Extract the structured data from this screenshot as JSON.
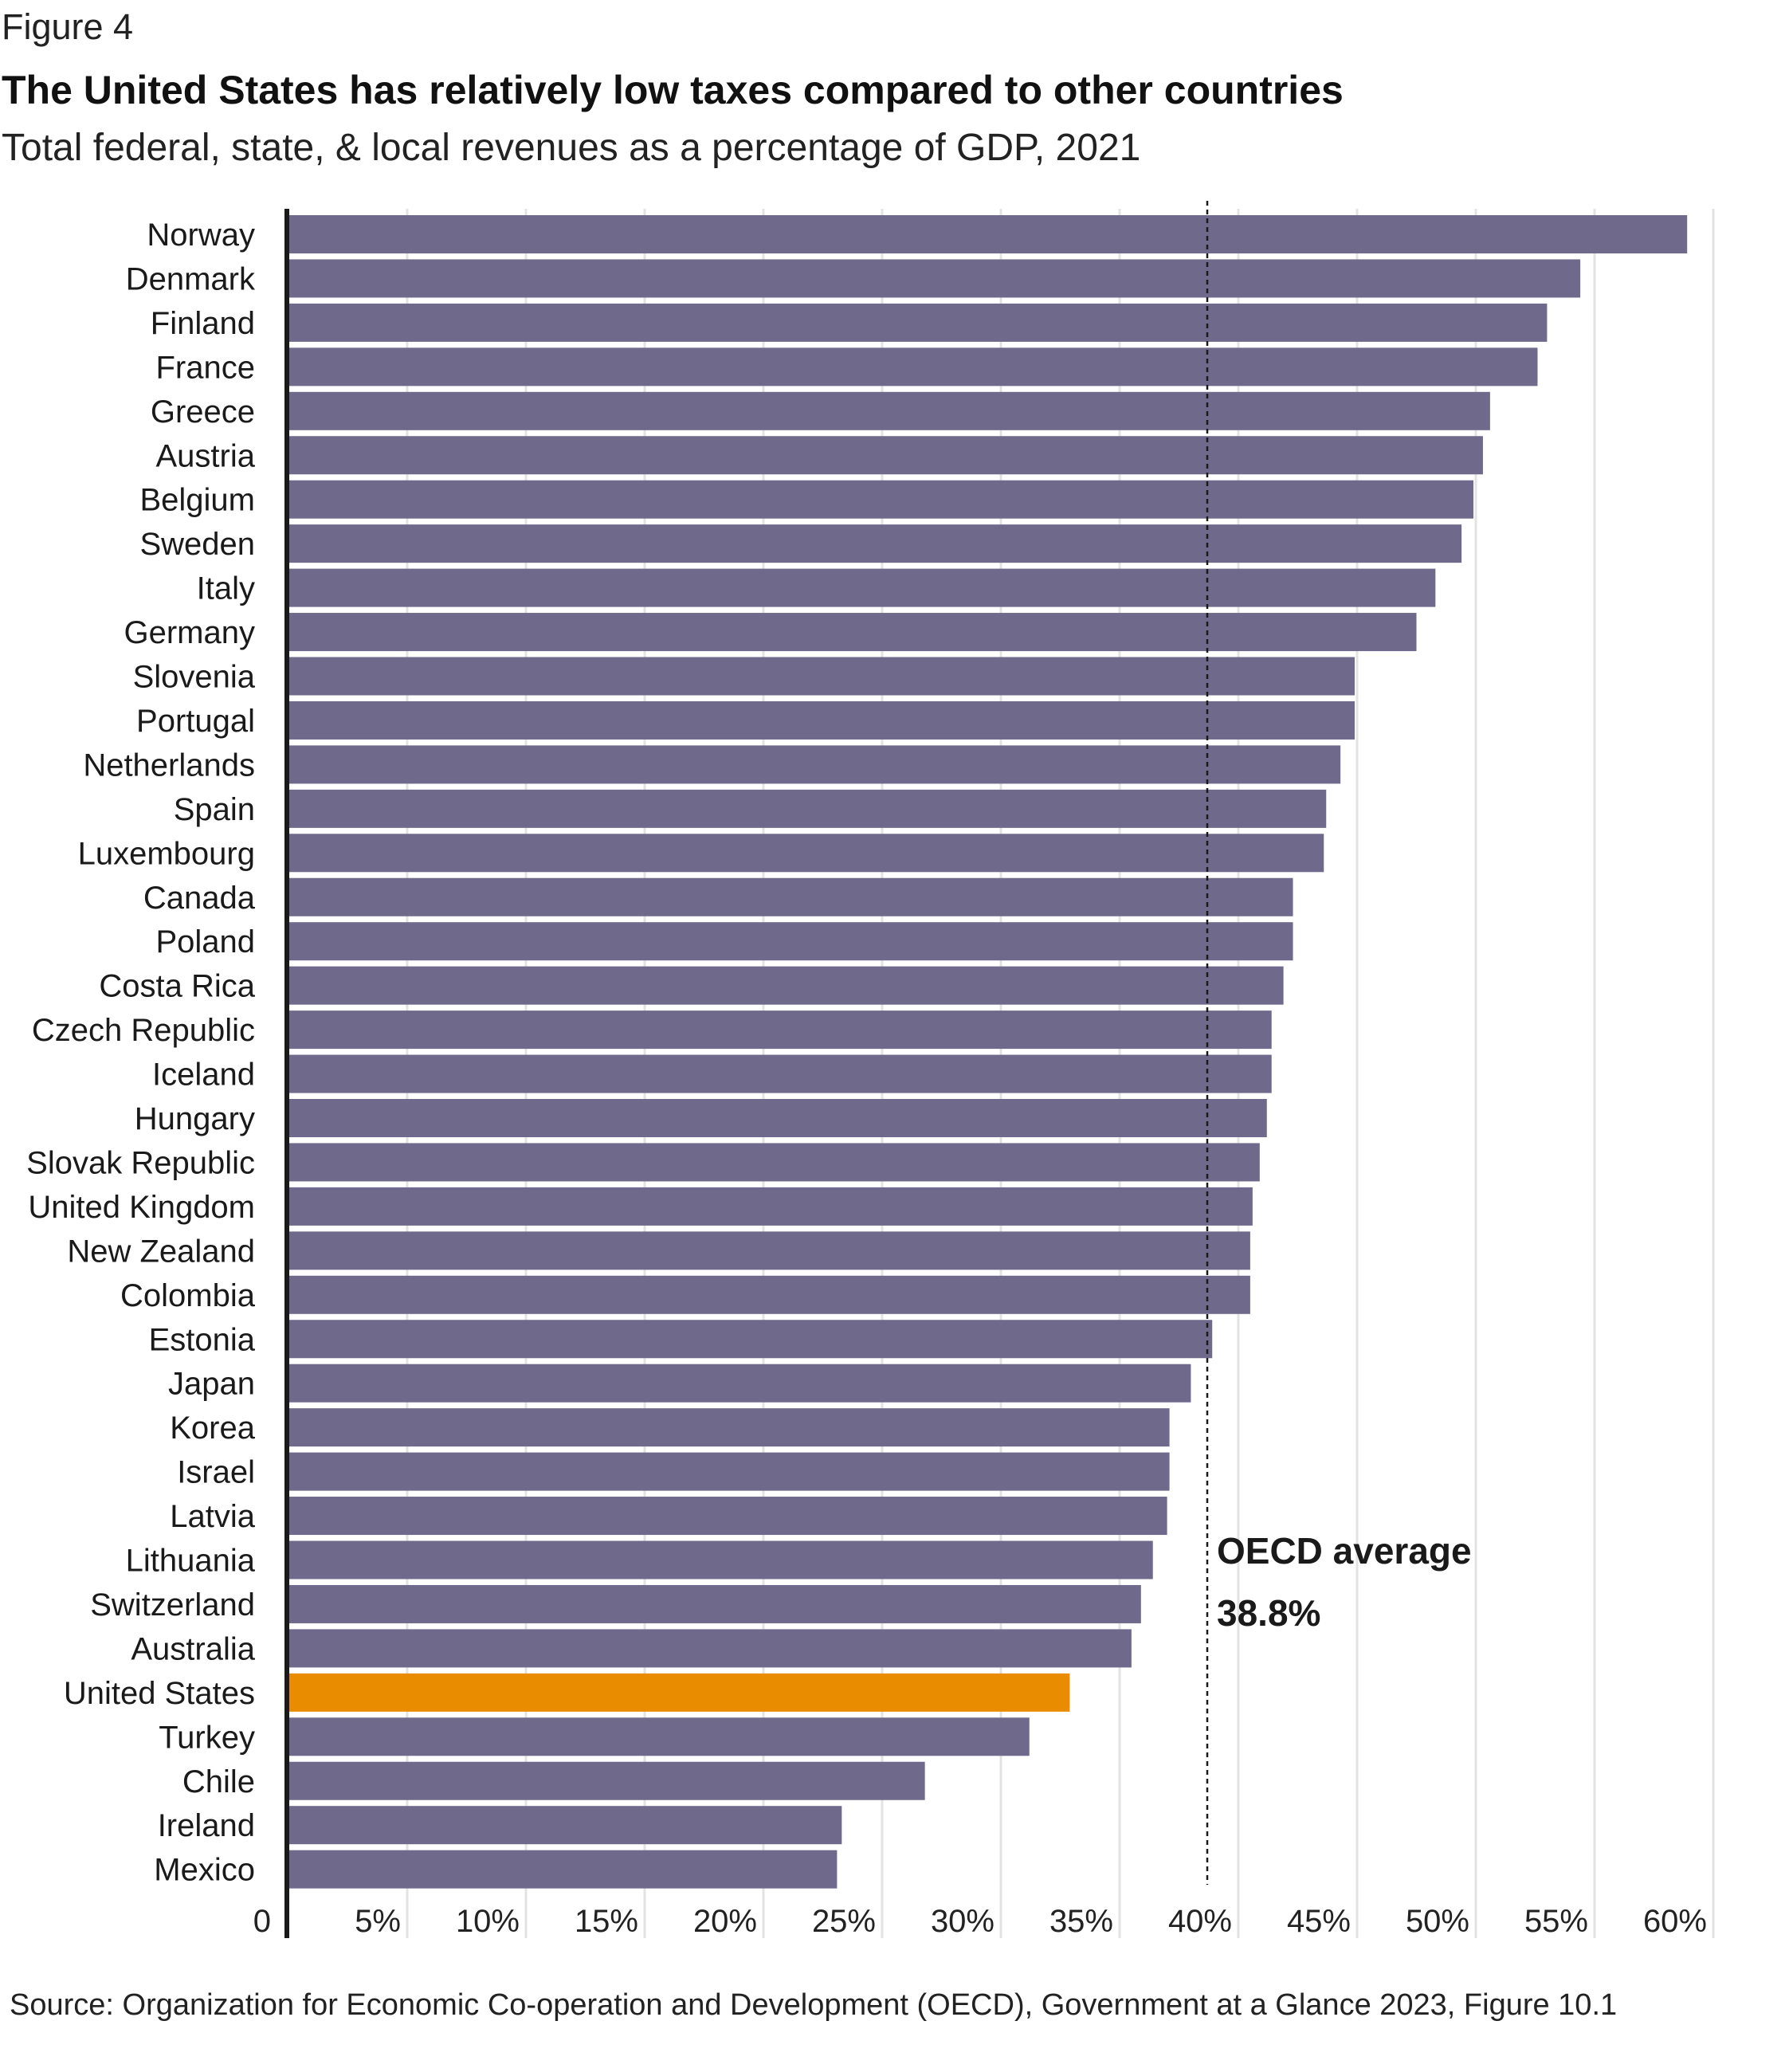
{
  "figure_label": "Figure 4",
  "title": "The United States has relatively low taxes compared to other countries",
  "subtitle": "Total federal, state, & local revenues as a percentage of GDP, 2021",
  "source": "Source: Organization for Economic Co-operation and Development (OECD), Government at a Glance 2023, Figure 10.1",
  "colors": {
    "bar": "#6f698b",
    "highlight": "#e98c00",
    "grid": "#e3e3e3",
    "axis": "#1a1a1a",
    "reference": "#1a1a1a"
  },
  "chart_data": {
    "type": "bar",
    "orientation": "horizontal",
    "title": "The United States has relatively low taxes compared to other countries",
    "subtitle": "Total federal, state, & local revenues as a percentage of GDP, 2021",
    "xlabel": "",
    "ylabel": "",
    "xlim": [
      0,
      60
    ],
    "grid": true,
    "ticks": [
      {
        "value": 0,
        "label": "0"
      },
      {
        "value": 5,
        "label": "5%"
      },
      {
        "value": 10,
        "label": "10%"
      },
      {
        "value": 15,
        "label": "15%"
      },
      {
        "value": 20,
        "label": "20%"
      },
      {
        "value": 25,
        "label": "25%"
      },
      {
        "value": 30,
        "label": "30%"
      },
      {
        "value": 35,
        "label": "35%"
      },
      {
        "value": 40,
        "label": "40%"
      },
      {
        "value": 45,
        "label": "45%"
      },
      {
        "value": 50,
        "label": "50%"
      },
      {
        "value": 55,
        "label": "55%"
      },
      {
        "value": 60,
        "label": "60%"
      }
    ],
    "categories": [
      "Norway",
      "Denmark",
      "Finland",
      "France",
      "Greece",
      "Austria",
      "Belgium",
      "Sweden",
      "Italy",
      "Germany",
      "Slovenia",
      "Portugal",
      "Netherlands",
      "Spain",
      "Luxembourg",
      "Canada",
      "Poland",
      "Costa Rica",
      "Czech Republic",
      "Iceland",
      "Hungary",
      "Slovak Republic",
      "United Kingdom",
      "New Zealand",
      "Colombia",
      "Estonia",
      "Japan",
      "Korea",
      "Israel",
      "Latvia",
      "Lithuania",
      "Switzerland",
      "Australia",
      "United States",
      "Turkey",
      "Chile",
      "Ireland",
      "Mexico"
    ],
    "values": [
      58.9,
      54.4,
      53.0,
      52.6,
      50.6,
      50.3,
      49.9,
      49.4,
      48.3,
      47.5,
      44.9,
      44.9,
      44.3,
      43.7,
      43.6,
      42.3,
      42.3,
      41.9,
      41.4,
      41.4,
      41.2,
      40.9,
      40.6,
      40.5,
      40.5,
      38.9,
      38.0,
      37.1,
      37.1,
      37.0,
      36.4,
      35.9,
      35.5,
      32.9,
      31.2,
      26.8,
      23.3,
      23.1
    ],
    "highlight": "United States",
    "reference_line": {
      "value": 38.8,
      "label_line1": "OECD average",
      "label_line2": "38.8%"
    }
  }
}
